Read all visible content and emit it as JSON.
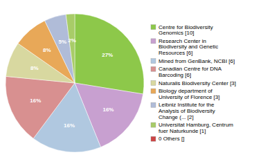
{
  "chart_data": {
    "type": "pie",
    "categories": [
      "Centre for Biodiversity\nGenomics [10]",
      "Research Center in\nBiodiversity and Genetic\nResources [6]",
      "Mined from GenBank, NCBI [6]",
      "Canadian Centre for DNA\nBarcoding [6]",
      "Naturalis Biodiversity Center [3]",
      "Biology department of\nUniversity of Florence [3]",
      "Leibniz Institute for the\nAnalysis of Biodiversity\nChange (... [2]",
      "Universitat Hamburg, Centrum\nfuer Naturkunde [1]",
      "0 Others []"
    ],
    "values": [
      27,
      16,
      16,
      16,
      8,
      8,
      5,
      2,
      0
    ],
    "value_labels": [
      "27%",
      "16%",
      "16%",
      "16%",
      "8%",
      "8%",
      "5%",
      "2%",
      null
    ],
    "colors": [
      "#8dc84a",
      "#c8a0d0",
      "#b0c8e0",
      "#d89090",
      "#d8d8a0",
      "#e8a858",
      "#b0bcd8",
      "#a8cc68",
      "#cc4444"
    ],
    "data_labels": true,
    "legend": "right"
  }
}
